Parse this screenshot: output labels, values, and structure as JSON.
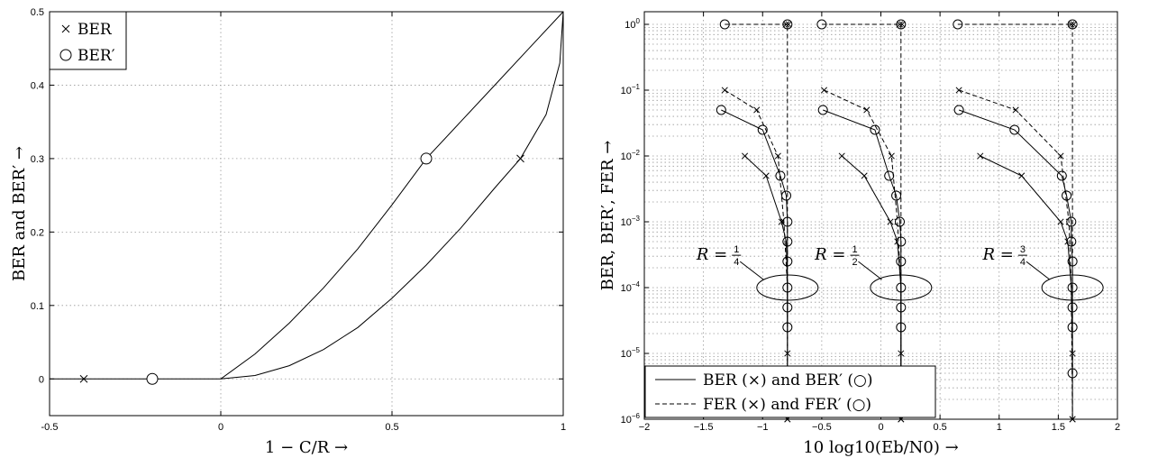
{
  "chart_data": [
    {
      "type": "line",
      "xlabel": "1 − C/R →",
      "ylabel": "BER and BER′ →",
      "xlim": [
        -0.5,
        1
      ],
      "ylim": [
        -0.05,
        0.5
      ],
      "xticks": [
        "-0.5",
        "0",
        "0.5",
        "1"
      ],
      "yticks": [
        "0",
        "0.1",
        "0.2",
        "0.3",
        "0.4",
        "0.5"
      ],
      "grid": true,
      "legend": {
        "placement": "top-left",
        "entries": [
          {
            "name": "BER",
            "marker": "x"
          },
          {
            "name": "BER′",
            "marker": "o"
          }
        ]
      },
      "series": [
        {
          "name": "BER′ curve",
          "points": [
            [
              -0.5,
              0
            ],
            [
              0,
              0
            ],
            [
              0.1,
              0.034
            ],
            [
              0.2,
              0.076
            ],
            [
              0.3,
              0.124
            ],
            [
              0.4,
              0.177
            ],
            [
              0.5,
              0.237
            ],
            [
              0.6,
              0.3
            ],
            [
              0.7,
              0.35
            ],
            [
              0.8,
              0.4
            ],
            [
              0.9,
              0.45
            ],
            [
              1.0,
              0.5
            ]
          ]
        },
        {
          "name": "BER curve",
          "points": [
            [
              0,
              0
            ],
            [
              0.1,
              0.0046
            ],
            [
              0.2,
              0.018
            ],
            [
              0.3,
              0.04
            ],
            [
              0.4,
              0.07
            ],
            [
              0.5,
              0.11
            ],
            [
              0.6,
              0.155
            ],
            [
              0.7,
              0.205
            ],
            [
              0.8,
              0.26
            ],
            [
              0.875,
              0.3
            ],
            [
              0.95,
              0.36
            ],
            [
              0.99,
              0.43
            ],
            [
              1.0,
              0.5
            ]
          ]
        }
      ],
      "markers": [
        {
          "series": "BER",
          "marker": "x",
          "x": -0.4,
          "y": 0
        },
        {
          "series": "BER′",
          "marker": "o",
          "x": -0.2,
          "y": 0
        },
        {
          "series": "BER′",
          "marker": "o",
          "x": 0.6,
          "y": 0.3
        },
        {
          "series": "BER",
          "marker": "x",
          "x": 0.875,
          "y": 0.3
        }
      ]
    },
    {
      "type": "line",
      "yscale": "log",
      "xlabel": "10 log10(Eb/N0) →",
      "ylabel": "BER, BER′, FER →",
      "xlim": [
        -2,
        2
      ],
      "ylim": [
        1e-06,
        1
      ],
      "xticks": [
        "−2",
        "−1.5",
        "−1",
        "−0.5",
        "0",
        "0.5",
        "1",
        "1.5",
        "2"
      ],
      "yticks": [
        "10^-6",
        "10^-5",
        "10^-4",
        "10^-3",
        "10^-2",
        "10^-1",
        "10^0"
      ],
      "grid": true,
      "legend": {
        "placement": "bottom-left",
        "entries": [
          {
            "name": "BER (×) and BER′ (○)",
            "line": "solid"
          },
          {
            "name": "FER (×) and FER′ (○)",
            "line": "dashed"
          }
        ]
      },
      "annotations": [
        {
          "text": "R = 1/4",
          "x": -1.16,
          "y": 0.00032
        },
        {
          "text": "R = 1/2",
          "x": -0.16,
          "y": 0.00032
        },
        {
          "text": "R = 3/4",
          "x": 1.26,
          "y": 0.00032
        }
      ],
      "groups": [
        {
          "rate": "1/4",
          "threshold": -0.79,
          "fer": [
            [
              -1.32,
              1
            ],
            [
              -0.79,
              1
            ],
            [
              -0.79,
              1e-06
            ]
          ],
          "fer_x": [
            [
              -0.8,
              1
            ],
            [
              -0.78,
              1
            ]
          ],
          "ferp": [
            [
              -1.32,
              0.1
            ],
            [
              -1.05,
              0.05
            ],
            [
              -0.87,
              0.01
            ],
            [
              -0.82,
              0.001
            ],
            [
              -0.79,
              0.0001
            ],
            [
              -0.79,
              1e-06
            ]
          ],
          "berp": [
            [
              -1.35,
              0.05
            ],
            [
              -1.0,
              0.025
            ],
            [
              -0.85,
              0.005
            ],
            [
              -0.8,
              0.0025
            ],
            [
              -0.79,
              0.001
            ],
            [
              -0.79,
              0.0005
            ],
            [
              -0.79,
              0.00025
            ],
            [
              -0.79,
              0.0001
            ],
            [
              -0.79,
              5e-05
            ],
            [
              -0.79,
              2.5e-05
            ]
          ],
          "ber": [
            [
              -1.15,
              0.01
            ],
            [
              -0.97,
              0.005
            ],
            [
              -0.84,
              0.001
            ],
            [
              -0.8,
              0.0005
            ],
            [
              -0.79,
              0.0001
            ],
            [
              -0.79,
              1e-05
            ],
            [
              -0.79,
              1e-06
            ]
          ]
        },
        {
          "rate": "1/2",
          "threshold": 0.17,
          "fer": [
            [
              -0.5,
              1
            ],
            [
              0.17,
              1
            ],
            [
              0.17,
              1e-06
            ]
          ],
          "fer_x": [
            [
              0.16,
              1
            ],
            [
              0.18,
              1
            ]
          ],
          "ferp": [
            [
              -0.48,
              0.1
            ],
            [
              -0.12,
              0.05
            ],
            [
              0.09,
              0.01
            ],
            [
              0.14,
              0.001
            ],
            [
              0.17,
              0.0001
            ],
            [
              0.17,
              1e-06
            ]
          ],
          "berp": [
            [
              -0.49,
              0.05
            ],
            [
              -0.05,
              0.025
            ],
            [
              0.07,
              0.005
            ],
            [
              0.13,
              0.0025
            ],
            [
              0.16,
              0.001
            ],
            [
              0.17,
              0.0005
            ],
            [
              0.17,
              0.00025
            ],
            [
              0.17,
              0.0001
            ],
            [
              0.17,
              5e-05
            ],
            [
              0.17,
              2.5e-05
            ],
            [
              0.17,
              5e-06
            ]
          ],
          "ber": [
            [
              -0.33,
              0.01
            ],
            [
              -0.14,
              0.005
            ],
            [
              0.08,
              0.001
            ],
            [
              0.14,
              0.0005
            ],
            [
              0.17,
              0.0001
            ],
            [
              0.17,
              1e-05
            ],
            [
              0.17,
              1e-06
            ]
          ]
        },
        {
          "rate": "3/4",
          "threshold": 1.62,
          "fer": [
            [
              0.65,
              1
            ],
            [
              1.62,
              1
            ],
            [
              1.62,
              1e-06
            ]
          ],
          "fer_x": [
            [
              1.61,
              1
            ],
            [
              1.63,
              1
            ]
          ],
          "ferp": [
            [
              0.66,
              0.1
            ],
            [
              1.14,
              0.05
            ],
            [
              1.52,
              0.01
            ],
            [
              1.59,
              0.001
            ],
            [
              1.61,
              0.0001
            ],
            [
              1.62,
              1e-06
            ]
          ],
          "berp": [
            [
              0.66,
              0.05
            ],
            [
              1.13,
              0.025
            ],
            [
              1.53,
              0.005
            ],
            [
              1.57,
              0.0025
            ],
            [
              1.61,
              0.001
            ],
            [
              1.61,
              0.0005
            ],
            [
              1.62,
              0.00025
            ],
            [
              1.62,
              0.0001
            ],
            [
              1.62,
              5e-05
            ],
            [
              1.62,
              2.5e-05
            ],
            [
              1.62,
              5e-06
            ]
          ],
          "ber": [
            [
              0.84,
              0.01
            ],
            [
              1.19,
              0.005
            ],
            [
              1.52,
              0.001
            ],
            [
              1.58,
              0.0005
            ],
            [
              1.61,
              0.0001
            ],
            [
              1.62,
              1e-05
            ],
            [
              1.62,
              1e-06
            ]
          ]
        }
      ]
    }
  ]
}
